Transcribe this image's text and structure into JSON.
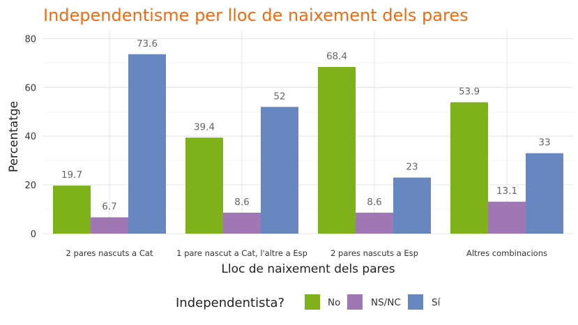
{
  "chart_data": {
    "type": "bar",
    "title": "Independentisme per lloc de naixement dels pares",
    "xlabel": "Lloc de naixement dels pares",
    "ylabel": "Percentatge",
    "ylim": [
      0,
      82
    ],
    "yticks": [
      0,
      20,
      40,
      60,
      80
    ],
    "grid": true,
    "legend_position": "bottom",
    "legend_title": "Independentista?",
    "categories": [
      "2 pares nascuts a Cat",
      "1 pare nascut a Cat, l'altre a Esp",
      "2 pares nascuts a Esp",
      "Altres combinacions"
    ],
    "series": [
      {
        "name": "No",
        "color": "#7fb11a",
        "values": [
          19.7,
          39.4,
          68.4,
          53.9
        ],
        "labels": [
          "19.7",
          "39.4",
          "68.4",
          "53.9"
        ]
      },
      {
        "name": "NS/NC",
        "color": "#a077b2",
        "values": [
          6.7,
          8.6,
          8.6,
          13.1
        ],
        "labels": [
          "6.7",
          "8.6",
          "8.6",
          "13.1"
        ]
      },
      {
        "name": "Sí",
        "color": "#6886c0",
        "values": [
          73.6,
          52,
          23,
          33
        ],
        "labels": [
          "73.6",
          "52",
          "23",
          "33"
        ]
      }
    ],
    "colors": {
      "title": "#f26a10",
      "grid": "#e6e6e6",
      "axis_text": "#333333",
      "label_text": "#666666"
    }
  }
}
